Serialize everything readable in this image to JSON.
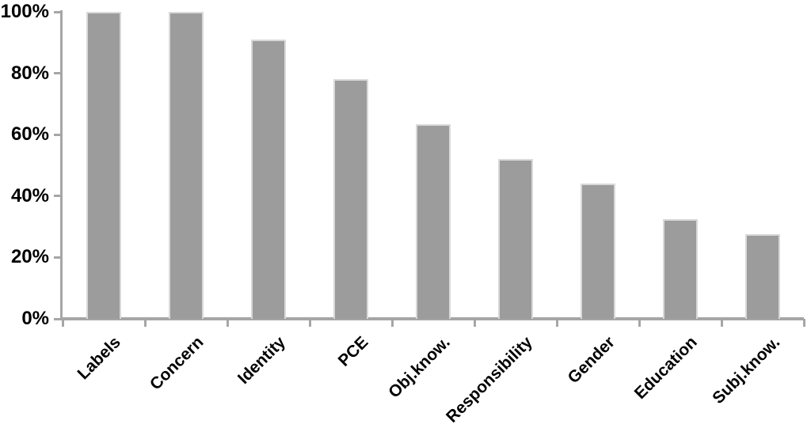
{
  "chart_data": {
    "type": "bar",
    "categories": [
      "Labels",
      "Concern",
      "Identity",
      "PCE",
      "Obj.know.",
      "Responsibility",
      "Gender",
      "Education",
      "Subj.know."
    ],
    "values": [
      100,
      100,
      91,
      78,
      63.5,
      52,
      44,
      32.5,
      27.5
    ],
    "title": "",
    "xlabel": "",
    "ylabel": "",
    "ylim": [
      0,
      100
    ],
    "yticks": [
      0,
      20,
      40,
      60,
      80,
      100
    ],
    "ytick_labels": [
      "0%",
      "20%",
      "40%",
      "60%",
      "80%",
      "100%"
    ],
    "legend": null,
    "grid": false,
    "colors": {
      "bar_fill": "#9c9c9c",
      "bar_border": "#d9d9d9",
      "axis": "#a6a6a6",
      "text": "#000000",
      "background": "#ffffff"
    }
  }
}
